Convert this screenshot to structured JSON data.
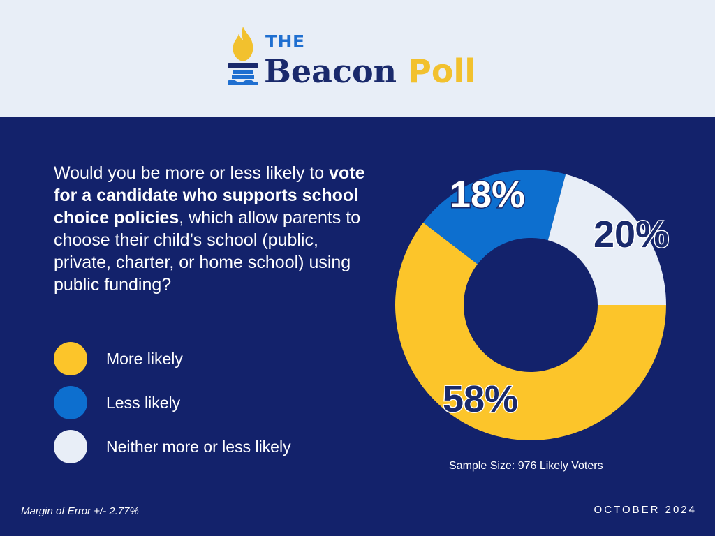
{
  "header": {
    "logo_the": "THE",
    "logo_word1": "Beacon",
    "logo_word2": "Poll",
    "colors": {
      "background": "#e8eef7",
      "navy": "#1a2a6c",
      "yellow": "#f2c12e",
      "blue": "#1f6fd0"
    },
    "icon": "torch-icon"
  },
  "question": {
    "part1": "Would you be more or less likely to ",
    "bold": "vote for a candidate who supports school choice policies",
    "part2": ", which allow parents to choose their child’s school (public, private, charter, or home school) using public funding?"
  },
  "chart_data": {
    "type": "pie",
    "style": "donut",
    "categories": [
      "More likely",
      "Less likely",
      "Neither more or less likely"
    ],
    "values": [
      58,
      18,
      20
    ],
    "data_labels": [
      "58%",
      "18%",
      "20%"
    ],
    "colors": [
      "#fcc52a",
      "#0d6fcf",
      "#e8eef7"
    ],
    "label_colors": [
      "#1a2a6c",
      "#ffffff",
      "#1a2a6c"
    ],
    "legend_placement": "left"
  },
  "footer": {
    "sample_size": "Sample Size: 976 Likely Voters",
    "margin_of_error": "Margin of Error +/- 2.77%",
    "date": "OCTOBER 2024"
  },
  "background_color": "#13226b"
}
